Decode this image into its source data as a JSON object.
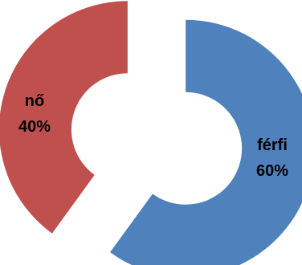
{
  "chart_data": {
    "type": "pie",
    "style": "exploded-doughnut",
    "slices": [
      {
        "label": "férfi",
        "value": 60,
        "value_label": "60%",
        "color": "#4f81bd"
      },
      {
        "label": "nő",
        "value": 40,
        "value_label": "40%",
        "color": "#c0504d"
      }
    ]
  }
}
